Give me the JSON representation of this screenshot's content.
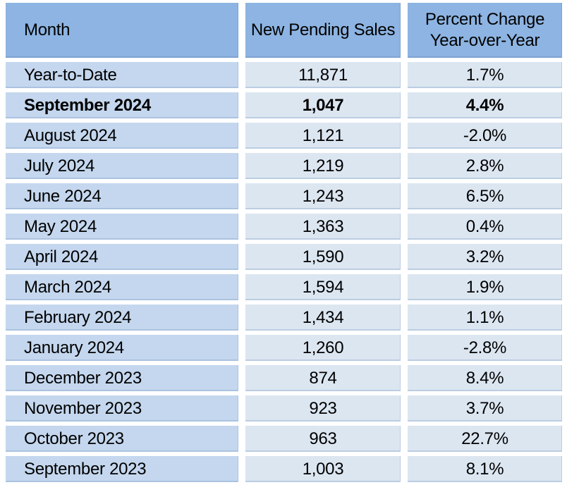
{
  "colors": {
    "header_fill": "#8DB4E2",
    "month_cell_fill": "#C4D7EE",
    "value_cell_fill": "#DCE6F1",
    "text": "#000000",
    "background": "#FFFFFF"
  },
  "chart_data": {
    "type": "table",
    "columns": [
      "Month",
      "New Pending Sales",
      "Percent Change Year-over-Year"
    ],
    "header_display": {
      "month": "Month",
      "sales": "New Pending Sales",
      "change_line1": "Percent Change",
      "change_line2": "Year-over-Year"
    },
    "rows": [
      {
        "month": "Year-to-Date",
        "sales": "11,871",
        "change": "1.7%",
        "bold": false
      },
      {
        "month": "September 2024",
        "sales": "1,047",
        "change": "4.4%",
        "bold": true
      },
      {
        "month": "August 2024",
        "sales": "1,121",
        "change": "-2.0%",
        "bold": false
      },
      {
        "month": "July 2024",
        "sales": "1,219",
        "change": "2.8%",
        "bold": false
      },
      {
        "month": "June 2024",
        "sales": "1,243",
        "change": "6.5%",
        "bold": false
      },
      {
        "month": "May 2024",
        "sales": "1,363",
        "change": "0.4%",
        "bold": false
      },
      {
        "month": "April 2024",
        "sales": "1,590",
        "change": "3.2%",
        "bold": false
      },
      {
        "month": "March 2024",
        "sales": "1,594",
        "change": "1.9%",
        "bold": false
      },
      {
        "month": "February 2024",
        "sales": "1,434",
        "change": "1.1%",
        "bold": false
      },
      {
        "month": "January 2024",
        "sales": "1,260",
        "change": "-2.8%",
        "bold": false
      },
      {
        "month": "December 2023",
        "sales": "874",
        "change": "8.4%",
        "bold": false
      },
      {
        "month": "November 2023",
        "sales": "923",
        "change": "3.7%",
        "bold": false
      },
      {
        "month": "October 2023",
        "sales": "963",
        "change": "22.7%",
        "bold": false
      },
      {
        "month": "September 2023",
        "sales": "1,003",
        "change": "8.1%",
        "bold": false
      }
    ]
  }
}
